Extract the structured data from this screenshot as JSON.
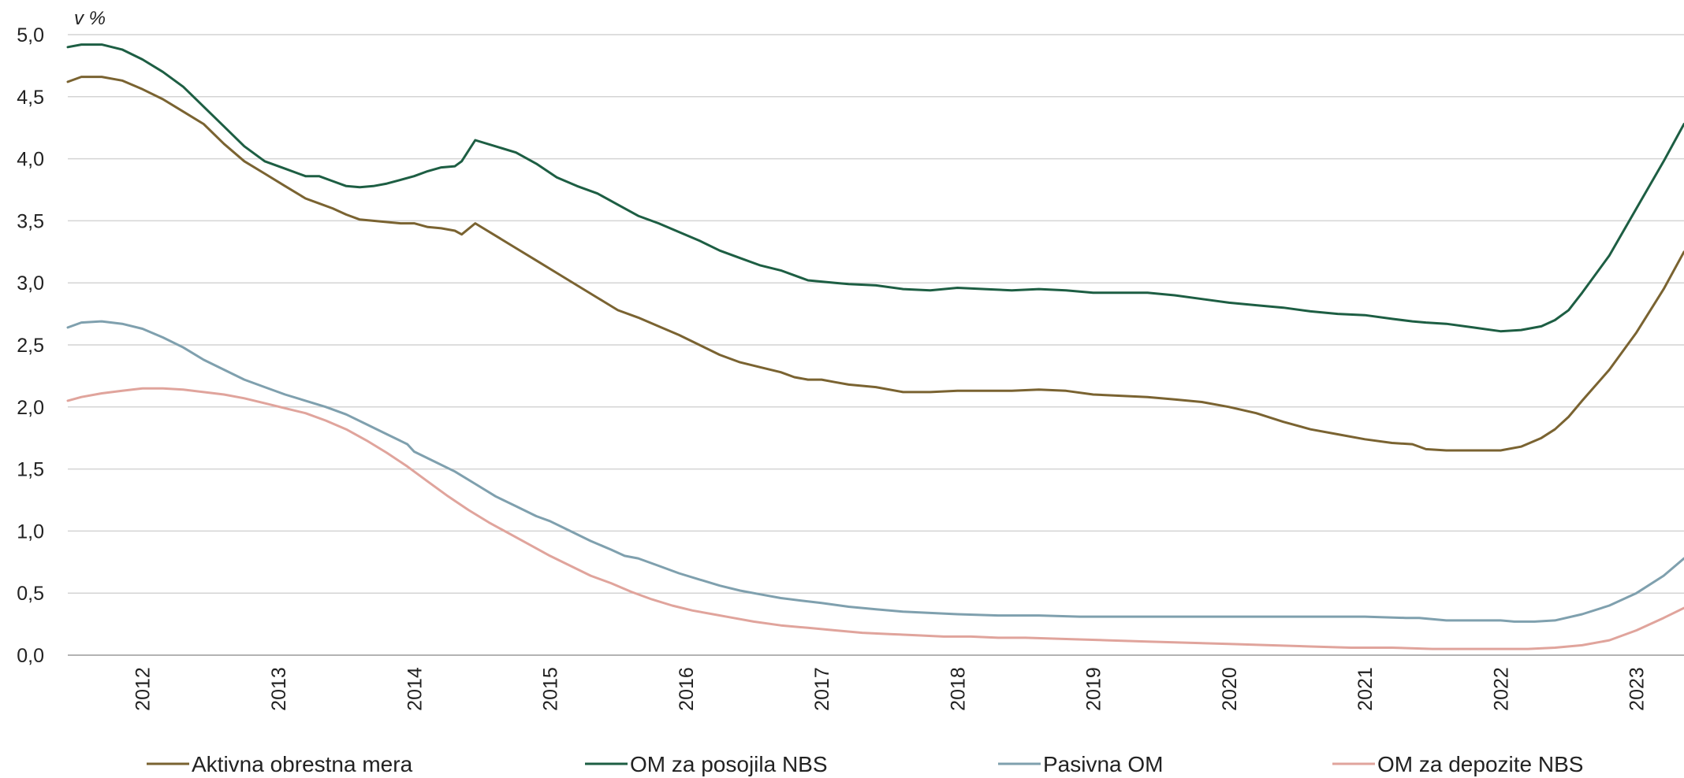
{
  "chart_data": {
    "type": "line",
    "title": "",
    "unit_label": "v %",
    "xlabel": "",
    "ylabel": "",
    "ylim": [
      0,
      5
    ],
    "xlim": [
      2011.45,
      2023.35
    ],
    "grid": true,
    "legend_position": "bottom",
    "y_ticks": [
      {
        "value": 0.0,
        "label": "0,0"
      },
      {
        "value": 0.5,
        "label": "0,5"
      },
      {
        "value": 1.0,
        "label": "1,0"
      },
      {
        "value": 1.5,
        "label": "1,5"
      },
      {
        "value": 2.0,
        "label": "2,0"
      },
      {
        "value": 2.5,
        "label": "2,5"
      },
      {
        "value": 3.0,
        "label": "3,0"
      },
      {
        "value": 3.5,
        "label": "3,5"
      },
      {
        "value": 4.0,
        "label": "4,0"
      },
      {
        "value": 4.5,
        "label": "4,5"
      },
      {
        "value": 5.0,
        "label": "5,0"
      }
    ],
    "x_ticks": [
      {
        "value": 2012,
        "label": "2012"
      },
      {
        "value": 2013,
        "label": "2013"
      },
      {
        "value": 2014,
        "label": "2014"
      },
      {
        "value": 2015,
        "label": "2015"
      },
      {
        "value": 2016,
        "label": "2016"
      },
      {
        "value": 2017,
        "label": "2017"
      },
      {
        "value": 2018,
        "label": "2018"
      },
      {
        "value": 2019,
        "label": "2019"
      },
      {
        "value": 2020,
        "label": "2020"
      },
      {
        "value": 2021,
        "label": "2021"
      },
      {
        "value": 2022,
        "label": "2022"
      },
      {
        "value": 2023,
        "label": "2023"
      }
    ],
    "series": [
      {
        "name": "Aktivna obrestna mera",
        "color": "#7a6331",
        "x": [
          2011.45,
          2011.55,
          2011.7,
          2011.85,
          2012.0,
          2012.15,
          2012.3,
          2012.45,
          2012.6,
          2012.75,
          2012.9,
          2013.05,
          2013.2,
          2013.3,
          2013.4,
          2013.5,
          2013.6,
          2013.7,
          2013.8,
          2013.9,
          2014.0,
          2014.1,
          2014.2,
          2014.3,
          2014.35,
          2014.45,
          2014.6,
          2014.75,
          2014.9,
          2015.05,
          2015.2,
          2015.35,
          2015.5,
          2015.65,
          2015.8,
          2015.95,
          2016.1,
          2016.25,
          2016.4,
          2016.55,
          2016.7,
          2016.8,
          2016.9,
          2017.0,
          2017.1,
          2017.2,
          2017.4,
          2017.6,
          2017.8,
          2018.0,
          2018.2,
          2018.4,
          2018.6,
          2018.8,
          2019.0,
          2019.2,
          2019.4,
          2019.6,
          2019.8,
          2020.0,
          2020.2,
          2020.4,
          2020.6,
          2020.8,
          2021.0,
          2021.2,
          2021.35,
          2021.45,
          2021.6,
          2021.8,
          2022.0,
          2022.15,
          2022.3,
          2022.4,
          2022.5,
          2022.6,
          2022.8,
          2023.0,
          2023.2,
          2023.35
        ],
        "values": [
          4.62,
          4.66,
          4.66,
          4.63,
          4.56,
          4.48,
          4.38,
          4.28,
          4.12,
          3.98,
          3.88,
          3.78,
          3.68,
          3.64,
          3.6,
          3.55,
          3.51,
          3.5,
          3.49,
          3.48,
          3.48,
          3.45,
          3.44,
          3.42,
          3.39,
          3.48,
          3.38,
          3.28,
          3.18,
          3.08,
          2.98,
          2.88,
          2.78,
          2.72,
          2.65,
          2.58,
          2.5,
          2.42,
          2.36,
          2.32,
          2.28,
          2.24,
          2.22,
          2.22,
          2.2,
          2.18,
          2.16,
          2.12,
          2.12,
          2.13,
          2.13,
          2.13,
          2.14,
          2.13,
          2.1,
          2.09,
          2.08,
          2.06,
          2.04,
          2.0,
          1.95,
          1.88,
          1.82,
          1.78,
          1.74,
          1.71,
          1.7,
          1.66,
          1.65,
          1.65,
          1.65,
          1.68,
          1.75,
          1.82,
          1.92,
          2.05,
          2.3,
          2.6,
          2.95,
          3.25
        ]
      },
      {
        "name": "OM za posojila NBS",
        "color": "#1d5e43",
        "x": [
          2011.45,
          2011.55,
          2011.7,
          2011.85,
          2012.0,
          2012.15,
          2012.3,
          2012.45,
          2012.6,
          2012.75,
          2012.9,
          2013.05,
          2013.2,
          2013.3,
          2013.4,
          2013.5,
          2013.6,
          2013.7,
          2013.8,
          2013.9,
          2014.0,
          2014.1,
          2014.2,
          2014.3,
          2014.35,
          2014.45,
          2014.6,
          2014.75,
          2014.9,
          2015.05,
          2015.2,
          2015.35,
          2015.5,
          2015.65,
          2015.8,
          2015.95,
          2016.1,
          2016.25,
          2016.4,
          2016.55,
          2016.7,
          2016.8,
          2016.9,
          2017.0,
          2017.1,
          2017.2,
          2017.4,
          2017.6,
          2017.8,
          2018.0,
          2018.2,
          2018.4,
          2018.6,
          2018.8,
          2019.0,
          2019.2,
          2019.4,
          2019.6,
          2019.8,
          2020.0,
          2020.2,
          2020.4,
          2020.6,
          2020.8,
          2021.0,
          2021.2,
          2021.35,
          2021.45,
          2021.6,
          2021.8,
          2022.0,
          2022.15,
          2022.3,
          2022.4,
          2022.5,
          2022.6,
          2022.8,
          2023.0,
          2023.2,
          2023.35
        ],
        "values": [
          4.9,
          4.92,
          4.92,
          4.88,
          4.8,
          4.7,
          4.58,
          4.42,
          4.26,
          4.1,
          3.98,
          3.92,
          3.86,
          3.86,
          3.82,
          3.78,
          3.77,
          3.78,
          3.8,
          3.83,
          3.86,
          3.9,
          3.93,
          3.94,
          3.98,
          4.15,
          4.1,
          4.05,
          3.96,
          3.85,
          3.78,
          3.72,
          3.63,
          3.54,
          3.48,
          3.41,
          3.34,
          3.26,
          3.2,
          3.14,
          3.1,
          3.06,
          3.02,
          3.01,
          3.0,
          2.99,
          2.98,
          2.95,
          2.94,
          2.96,
          2.95,
          2.94,
          2.95,
          2.94,
          2.92,
          2.92,
          2.92,
          2.9,
          2.87,
          2.84,
          2.82,
          2.8,
          2.77,
          2.75,
          2.74,
          2.71,
          2.69,
          2.68,
          2.67,
          2.64,
          2.61,
          2.62,
          2.65,
          2.7,
          2.78,
          2.92,
          3.22,
          3.6,
          3.98,
          4.28
        ]
      },
      {
        "name": "Pasivna OM",
        "color": "#7fa0ae",
        "x": [
          2011.45,
          2011.55,
          2011.7,
          2011.85,
          2012.0,
          2012.15,
          2012.3,
          2012.45,
          2012.6,
          2012.75,
          2012.9,
          2013.05,
          2013.2,
          2013.35,
          2013.5,
          2013.65,
          2013.8,
          2013.95,
          2014.0,
          2014.15,
          2014.3,
          2014.45,
          2014.6,
          2014.75,
          2014.9,
          2015.0,
          2015.15,
          2015.3,
          2015.45,
          2015.55,
          2015.65,
          2015.8,
          2015.95,
          2016.1,
          2016.25,
          2016.4,
          2016.55,
          2016.7,
          2016.85,
          2017.0,
          2017.2,
          2017.4,
          2017.6,
          2017.8,
          2018.0,
          2018.3,
          2018.6,
          2018.9,
          2019.2,
          2019.5,
          2019.8,
          2020.1,
          2020.4,
          2020.7,
          2021.0,
          2021.3,
          2021.4,
          2021.6,
          2021.8,
          2022.0,
          2022.1,
          2022.25,
          2022.4,
          2022.6,
          2022.8,
          2023.0,
          2023.2,
          2023.35
        ],
        "values": [
          2.64,
          2.68,
          2.69,
          2.67,
          2.63,
          2.56,
          2.48,
          2.38,
          2.3,
          2.22,
          2.16,
          2.1,
          2.05,
          2.0,
          1.94,
          1.86,
          1.78,
          1.7,
          1.64,
          1.56,
          1.48,
          1.38,
          1.28,
          1.2,
          1.12,
          1.08,
          1.0,
          0.92,
          0.85,
          0.8,
          0.78,
          0.72,
          0.66,
          0.61,
          0.56,
          0.52,
          0.49,
          0.46,
          0.44,
          0.42,
          0.39,
          0.37,
          0.35,
          0.34,
          0.33,
          0.32,
          0.32,
          0.31,
          0.31,
          0.31,
          0.31,
          0.31,
          0.31,
          0.31,
          0.31,
          0.3,
          0.3,
          0.28,
          0.28,
          0.28,
          0.27,
          0.27,
          0.28,
          0.33,
          0.4,
          0.5,
          0.64,
          0.78
        ]
      },
      {
        "name": "OM za depozite NBS",
        "color": "#e0a49c",
        "x": [
          2011.45,
          2011.55,
          2011.7,
          2011.85,
          2012.0,
          2012.15,
          2012.3,
          2012.45,
          2012.6,
          2012.75,
          2012.9,
          2013.05,
          2013.2,
          2013.35,
          2013.5,
          2013.65,
          2013.8,
          2013.95,
          2014.1,
          2014.25,
          2014.4,
          2014.55,
          2014.7,
          2014.85,
          2015.0,
          2015.15,
          2015.3,
          2015.45,
          2015.6,
          2015.75,
          2015.9,
          2016.05,
          2016.2,
          2016.35,
          2016.5,
          2016.7,
          2016.9,
          2017.1,
          2017.3,
          2017.5,
          2017.7,
          2017.9,
          2018.1,
          2018.3,
          2018.5,
          2018.8,
          2019.1,
          2019.4,
          2019.7,
          2020.0,
          2020.3,
          2020.6,
          2020.9,
          2021.2,
          2021.5,
          2021.8,
          2022.0,
          2022.2,
          2022.4,
          2022.6,
          2022.8,
          2023.0,
          2023.2,
          2023.35
        ],
        "values": [
          2.05,
          2.08,
          2.11,
          2.13,
          2.15,
          2.15,
          2.14,
          2.12,
          2.1,
          2.07,
          2.03,
          1.99,
          1.95,
          1.89,
          1.82,
          1.73,
          1.63,
          1.52,
          1.4,
          1.28,
          1.17,
          1.07,
          0.98,
          0.89,
          0.8,
          0.72,
          0.64,
          0.58,
          0.51,
          0.45,
          0.4,
          0.36,
          0.33,
          0.3,
          0.27,
          0.24,
          0.22,
          0.2,
          0.18,
          0.17,
          0.16,
          0.15,
          0.15,
          0.14,
          0.14,
          0.13,
          0.12,
          0.11,
          0.1,
          0.09,
          0.08,
          0.07,
          0.06,
          0.06,
          0.05,
          0.05,
          0.05,
          0.05,
          0.06,
          0.08,
          0.12,
          0.2,
          0.3,
          0.38
        ]
      }
    ]
  }
}
